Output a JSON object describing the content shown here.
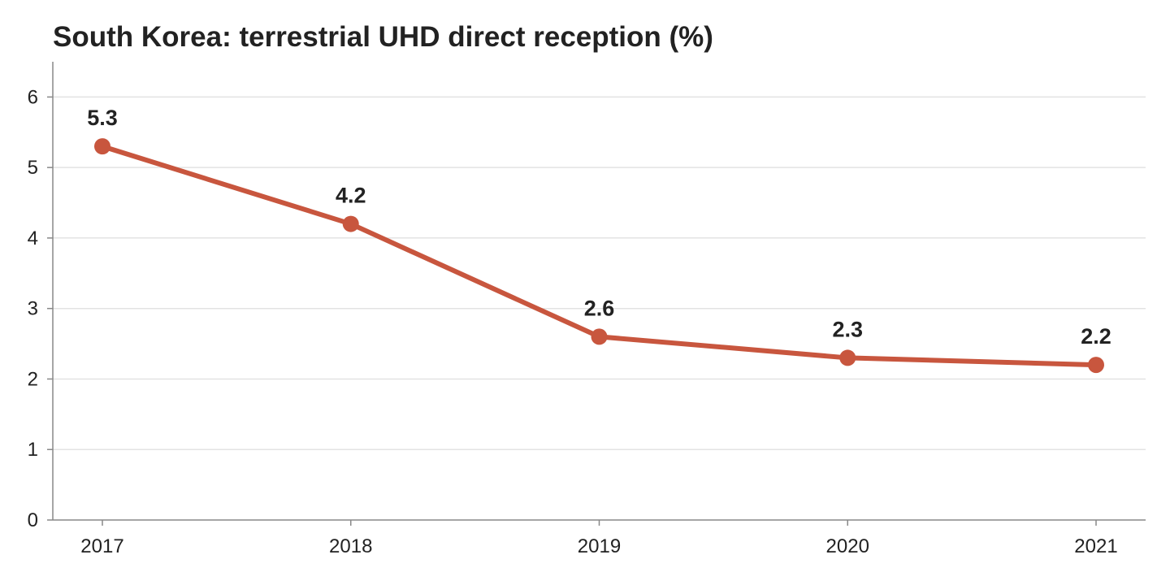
{
  "chart_data": {
    "type": "line",
    "title": "South Korea: terrestrial UHD direct reception (%)",
    "xlabel": "",
    "ylabel": "",
    "x": [
      "2017",
      "2018",
      "2019",
      "2020",
      "2021"
    ],
    "series": [
      {
        "values": [
          5.3,
          4.2,
          2.6,
          2.3,
          2.2
        ],
        "color": "#c8563e"
      }
    ],
    "data_labels": [
      "5.3",
      "4.2",
      "2.6",
      "2.3",
      "2.2"
    ],
    "ylim": [
      0,
      6.5
    ],
    "yticks": [
      0,
      1,
      2,
      3,
      4,
      5,
      6
    ],
    "grid": "horizontal",
    "legend": "none"
  }
}
